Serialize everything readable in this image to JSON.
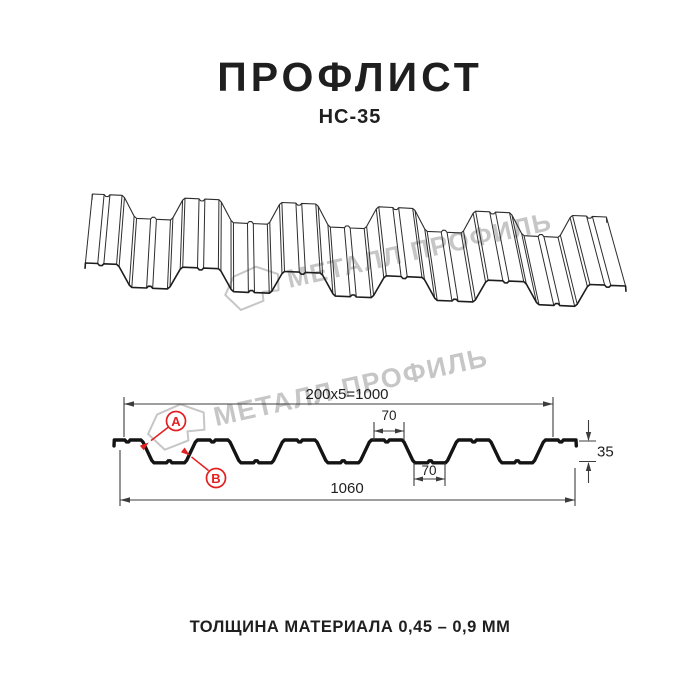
{
  "page": {
    "title": "ПРОФЛИСТ",
    "subtitle": "НС-35",
    "footer": "ТОЛЩИНА МАТЕРИАЛА 0,45 – 0,9 ММ"
  },
  "watermark": {
    "text": "МЕТАЛЛ ПРОФИЛЬ"
  },
  "dimensions": {
    "top_width": "200x5=1000",
    "top_flange": "70",
    "bottom_flange": "70",
    "height": "35",
    "overall_width": "1060",
    "marker_a": "А",
    "marker_b": "В"
  },
  "drawing": {
    "overall_mm": 1060,
    "module_mm": 200,
    "flange_mm": 70,
    "slope_mm": 30,
    "height_mm": 35,
    "lead_top_mm": 62,
    "modules": 5
  },
  "colors": {
    "profile": "#141414",
    "line": "#3c3c3c",
    "text": "#1f1f1f",
    "red": "#e32021",
    "watermark": "#c6c6c6"
  }
}
